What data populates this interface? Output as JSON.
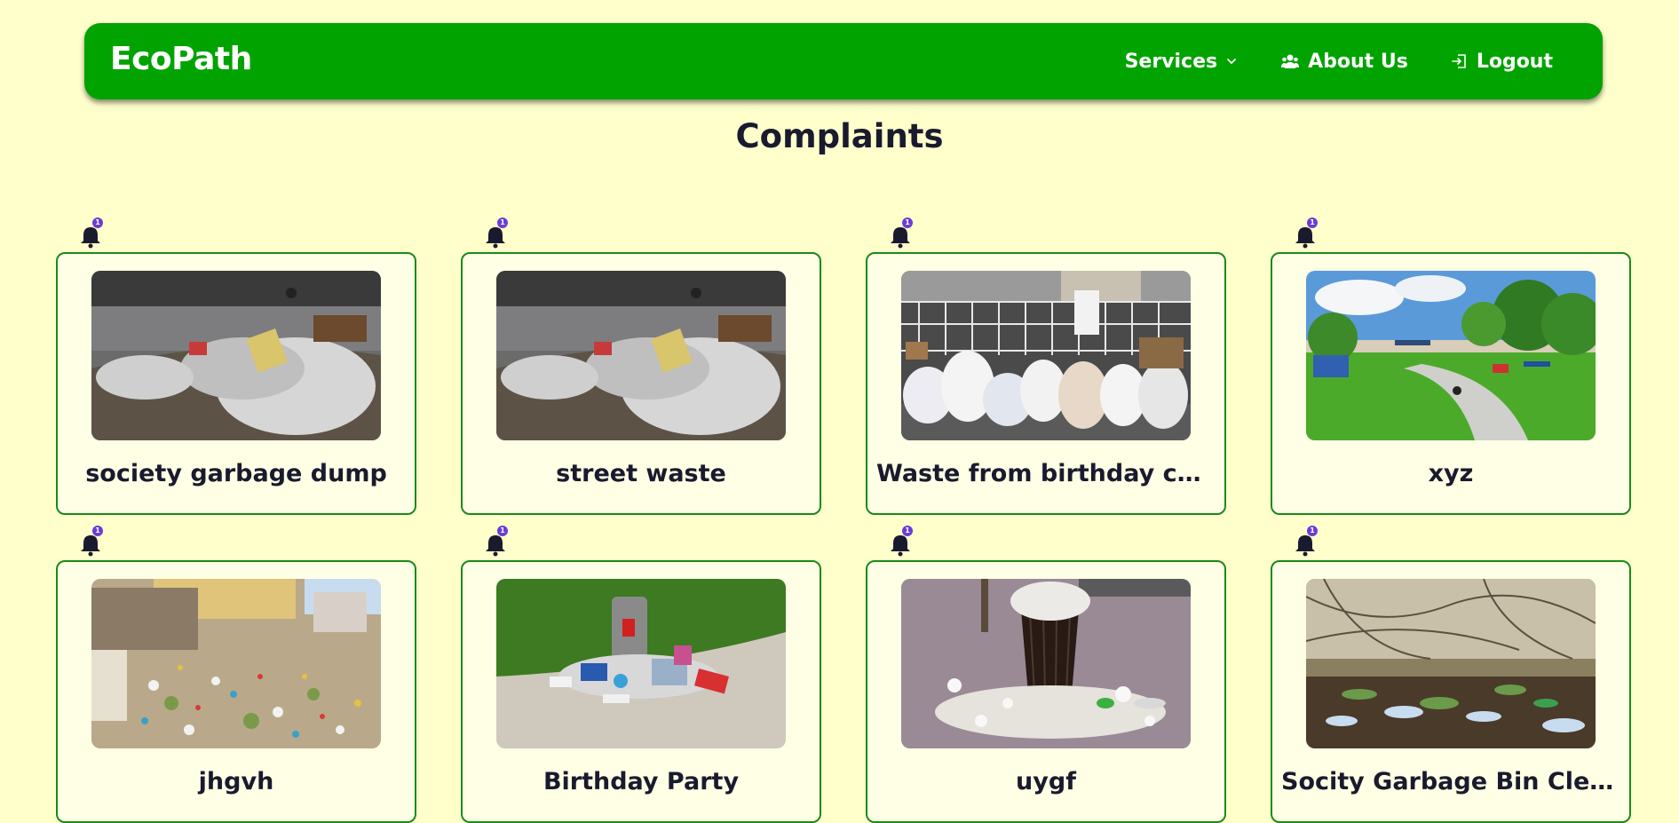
{
  "colors": {
    "page_background": "#ffffcc",
    "navbar": "#00a300",
    "card_border": "#1a8a1a",
    "badge": "#6a3dd6"
  },
  "navbar": {
    "brand": "EcoPath",
    "links": [
      {
        "label": "Services",
        "icon": "chevron-down-icon"
      },
      {
        "label": "About Us",
        "icon": "users-icon"
      },
      {
        "label": "Logout",
        "icon": "logout-icon"
      }
    ]
  },
  "page": {
    "title": "Complaints"
  },
  "complaints": [
    {
      "title": "society garbage dump",
      "notification_count": "1",
      "image": "roadside garbage dump"
    },
    {
      "title": "street waste",
      "notification_count": "1",
      "image": "roadside garbage dump"
    },
    {
      "title": "Waste from birthday celeb...",
      "notification_count": "1",
      "image": "garbage bags by fence"
    },
    {
      "title": "xyz",
      "notification_count": "1",
      "image": "clean park with path"
    },
    {
      "title": "jhgvh",
      "notification_count": "1",
      "image": "littered street"
    },
    {
      "title": "Birthday Party",
      "notification_count": "1",
      "image": "trash around bin on grass"
    },
    {
      "title": "uygf",
      "notification_count": "1",
      "image": "overflowing bin on pavement"
    },
    {
      "title": "Socity Garbage Bin Cleani...",
      "notification_count": "1",
      "image": "plastic bottles in bushes"
    }
  ]
}
